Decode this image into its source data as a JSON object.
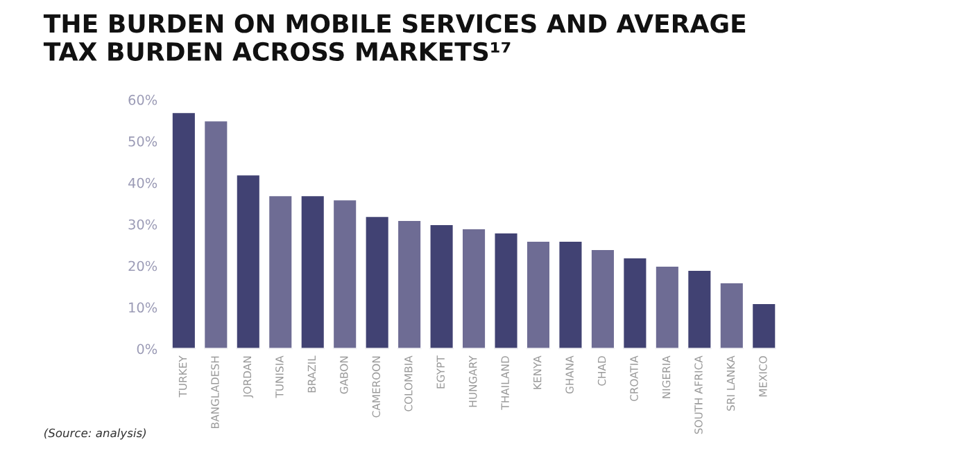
{
  "chart_data": {
    "type": "bar",
    "title": "THE BURDEN ON MOBILE SERVICES AND AVERAGE\nTAX BURDEN ACROSS MARKETS¹⁷",
    "categories": [
      "TURKEY",
      "BANGLADESH",
      "JORDAN",
      "TUNISIA",
      "BRAZIL",
      "GABON",
      "CAMEROON",
      "COLOMBIA",
      "EGYPT",
      "HUNGARY",
      "THAILAND",
      "KENYA",
      "GHANA",
      "CHAD",
      "CROATIA",
      "NIGERIA",
      "SOUTH AFRICA",
      "SRI LANKA",
      "MEXICO"
    ],
    "values": [
      57,
      55,
      42,
      37,
      37,
      36,
      32,
      31,
      30,
      29,
      28,
      26,
      26,
      24,
      22,
      20,
      19,
      16,
      11
    ],
    "colors": [
      "#414273",
      "#6e6c94",
      "#414273",
      "#6e6c94",
      "#414273",
      "#6e6c94",
      "#414273",
      "#6e6c94",
      "#414273",
      "#6e6c94",
      "#414273",
      "#6e6c94",
      "#414273",
      "#6e6c94",
      "#414273",
      "#6e6c94",
      "#414273",
      "#6e6c94",
      "#414273"
    ],
    "ylim": [
      0,
      60
    ],
    "yticks": [
      {
        "value": 0,
        "label": "0%"
      },
      {
        "value": 10,
        "label": "10%"
      },
      {
        "value": 20,
        "label": "20%"
      },
      {
        "value": 30,
        "label": "30%"
      },
      {
        "value": 40,
        "label": "40%"
      },
      {
        "value": 50,
        "label": "50%"
      },
      {
        "value": 60,
        "label": "60%"
      }
    ],
    "grid": false,
    "annotations": [
      "(Source: analysis)"
    ]
  }
}
